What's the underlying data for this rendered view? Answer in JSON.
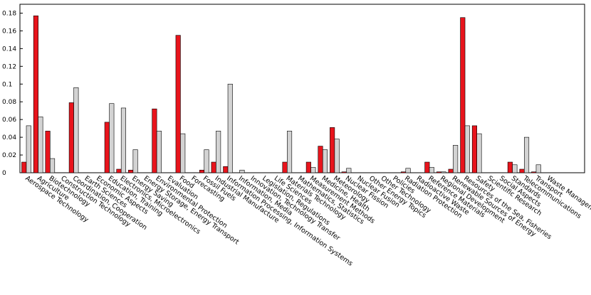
{
  "chart_data": {
    "type": "bar",
    "title": "",
    "xlabel": "",
    "ylabel": "",
    "ylim": [
      0,
      0.19
    ],
    "yticks": [
      0,
      0.02,
      0.04,
      0.06,
      0.08,
      0.1,
      0.12,
      0.14,
      0.16,
      0.18
    ],
    "ytick_labels": [
      "0",
      "0.02",
      "0.04",
      "0.06",
      "0.08",
      "0.1",
      "0.12",
      "0.14",
      "0.16",
      "0.18"
    ],
    "grid": false,
    "legend": "none",
    "categories": [
      "Aerospace Technology",
      "Agriculture",
      "Biotechnology",
      "Construction Technology",
      "Coordination, Cooperation",
      "Earth Sciences",
      "Economic Aspects",
      "Education, Training",
      "Electronics, Microelectronics",
      "Energy Saving",
      "Energy Storage, Energy Transport",
      "Environmental Protection",
      "Evaluation",
      "Food",
      "Forecasting",
      "Fossil Fuels",
      "Industrial Manufacture",
      "Information Processing, Information Systems",
      "Information, Media",
      "Innovation, Technology Transfer",
      "Legislation, Regulations",
      "Life Sciences",
      "Materials Technology",
      "Mathematics, Statistics",
      "Measurement Methods",
      "Medicine, Health",
      "Meteorology",
      "Nuclear Fission",
      "Nuclear Fusion",
      "Other Energy Topics",
      "Other Technology",
      "Policies",
      "Radiation Protection",
      "Radioactive Waste",
      "Reference Materials",
      "Regional Development",
      "Renewable Sources of Energy",
      "Resources of the Sea, Fisheries",
      "Safety",
      "Scientific Research",
      "Social Aspects",
      "Standards",
      "Telecommunications",
      "Transport",
      "Waste Management"
    ],
    "series": [
      {
        "color": "#e8141c",
        "values": [
          0.012,
          0.177,
          0.047,
          0,
          0.079,
          0,
          0,
          0.057,
          0.004,
          0.003,
          0,
          0.072,
          0,
          0.155,
          0,
          0.003,
          0.012,
          0.007,
          0,
          0,
          0,
          0,
          0.012,
          0,
          0.012,
          0.03,
          0.051,
          0.001,
          0,
          0,
          0,
          0,
          0.001,
          0,
          0.012,
          0.001,
          0.004,
          0.175,
          0.053,
          0,
          0,
          0.012,
          0.004,
          0.001,
          0
        ]
      },
      {
        "color": "#d3d3d3",
        "values": [
          0.053,
          0.063,
          0.016,
          0,
          0.096,
          0,
          0,
          0.078,
          0.073,
          0.026,
          0,
          0.047,
          0,
          0.044,
          0,
          0.026,
          0.047,
          0.1,
          0.003,
          0,
          0,
          0,
          0.047,
          0,
          0.006,
          0.026,
          0.038,
          0.005,
          0,
          0,
          0,
          0,
          0.005,
          0,
          0.006,
          0.001,
          0.031,
          0.053,
          0.044,
          0,
          0,
          0.009,
          0.04,
          0.009,
          0
        ]
      }
    ]
  }
}
